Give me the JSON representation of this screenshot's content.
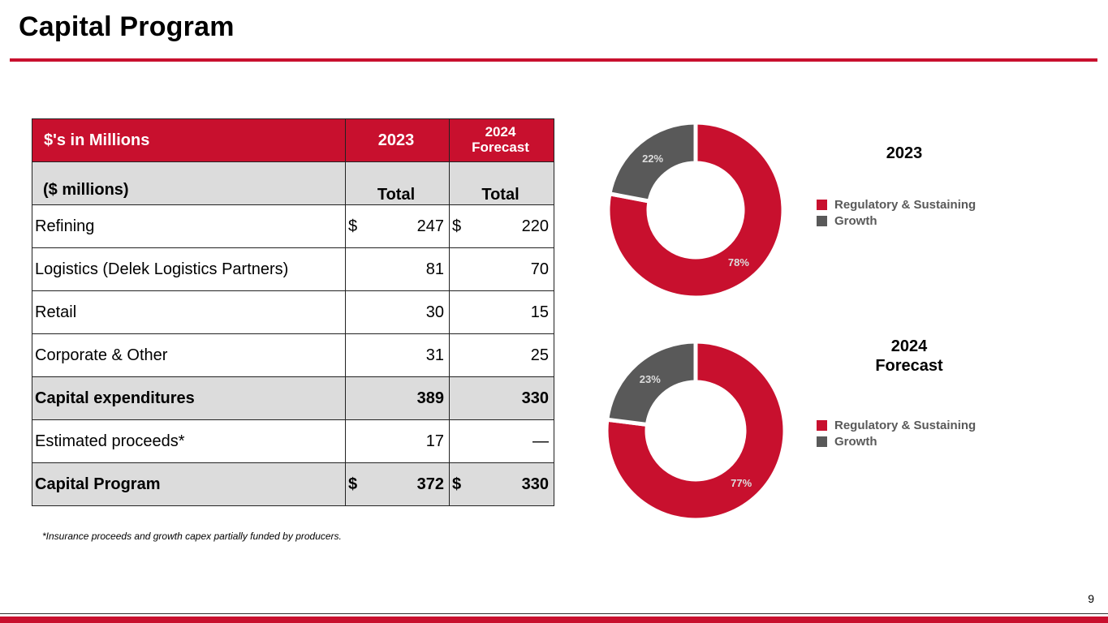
{
  "slide": {
    "title": "Capital Program",
    "page_number": "9"
  },
  "table": {
    "header": {
      "label": "$'s in Millions",
      "col2023": "2023",
      "col2024_line1": "2024",
      "col2024_line2": "Forecast"
    },
    "subheader": {
      "label": "($ millions)",
      "col2023": "Total",
      "col2024": "Total"
    },
    "rows": [
      {
        "label": "Refining",
        "currency2023": "$",
        "v2023": "247",
        "currency2024": "$",
        "v2024": "220"
      },
      {
        "label": "Logistics (Delek Logistics Partners)",
        "v2023": "81",
        "v2024": "70"
      },
      {
        "label": "Retail",
        "v2023": "30",
        "v2024": "15"
      },
      {
        "label": "Corporate & Other",
        "v2023": "31",
        "v2024": "25"
      },
      {
        "label": "Capital expenditures",
        "v2023": "389",
        "v2024": "330"
      },
      {
        "label": "Estimated proceeds*",
        "v2023": "17",
        "v2024": "—"
      },
      {
        "label": "Capital Program",
        "currency2023": "$",
        "v2023": "372",
        "currency2024": "$",
        "v2024": "330"
      }
    ]
  },
  "footnote": "*Insurance proceeds and growth capex partially funded by producers.",
  "colors": {
    "brand_red": "#c8102e",
    "growth_gray": "#595959",
    "row_shade": "#dcdcdc"
  },
  "chart_data": [
    {
      "type": "pie",
      "title": "2023",
      "categories": [
        "Regulatory & Sustaining",
        "Growth"
      ],
      "values": [
        78,
        22
      ],
      "data_labels": [
        "78%",
        "22%"
      ],
      "legend_position": "right"
    },
    {
      "type": "pie",
      "title_line1": "2024",
      "title_line2": "Forecast",
      "categories": [
        "Regulatory & Sustaining",
        "Growth"
      ],
      "values": [
        77,
        23
      ],
      "data_labels": [
        "77%",
        "23%"
      ],
      "legend_position": "right"
    }
  ]
}
